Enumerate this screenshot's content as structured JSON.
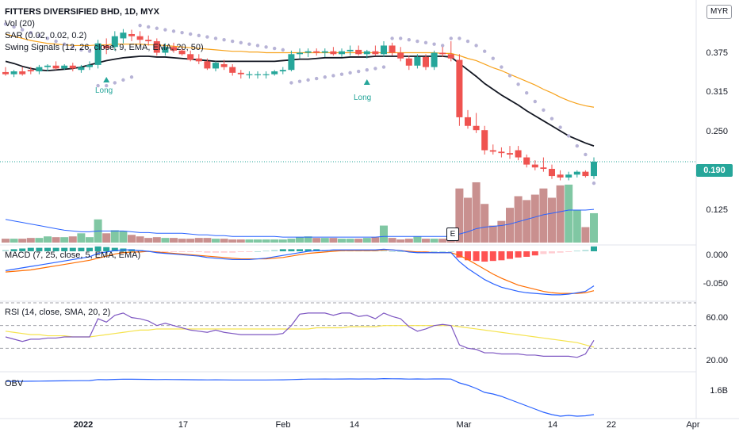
{
  "header": {
    "title": "FITTERS DIVERSIFIED BHD, 1D, MYX",
    "currency_badge": "MYR",
    "vol_label": "Vol (20)",
    "sar_label": "SAR (0.02, 0.02, 0.2)",
    "swing_label": "Swing Signals (12, 26, close, 9, EMA, EMA, 20, 50)"
  },
  "panes": {
    "macd_label": "MACD (7, 25, close, 5, EMA, EMA)",
    "rsi_label": "RSI (14, close, SMA, 20, 2)",
    "obv_label": "OBV"
  },
  "price_axis": {
    "ticks": [
      "0.375",
      "0.315",
      "0.250",
      "0.190",
      "0.125"
    ],
    "current_price": "0.190"
  },
  "macd_axis": {
    "ticks": [
      "0.000",
      "-0.050"
    ]
  },
  "rsi_axis": {
    "ticks": [
      "60.00",
      "20.00"
    ]
  },
  "obv_axis": {
    "ticks": [
      "1.6B"
    ]
  },
  "x_axis": {
    "ticks": [
      "2022",
      "17",
      "Feb",
      "14",
      "Mar",
      "14",
      "22",
      "Apr"
    ]
  },
  "annotations": {
    "long_1": "Long",
    "long_2": "Long",
    "earnings": "E"
  },
  "colors": {
    "up": "#26a69a",
    "down": "#ef5350",
    "ema20": "#131722",
    "ema50": "#f7a21b",
    "sar": "#b7b3d6",
    "macd": "#2962ff",
    "signal": "#ff6d00",
    "rsi": "#7e57c2",
    "rsi_ma": "#f5e34d",
    "obv": "#2962ff"
  },
  "chart_data": {
    "type": "candlestick",
    "price": {
      "ylim": [
        0.075,
        0.41
      ],
      "candles": [
        [
          0.315,
          0.322,
          0.31,
          0.312
        ],
        [
          0.312,
          0.318,
          0.308,
          0.316
        ],
        [
          0.316,
          0.322,
          0.31,
          0.312
        ],
        [
          0.318,
          0.322,
          0.312,
          0.316
        ],
        [
          0.316,
          0.325,
          0.312,
          0.322
        ],
        [
          0.322,
          0.326,
          0.316,
          0.324
        ],
        [
          0.324,
          0.33,
          0.318,
          0.32
        ],
        [
          0.32,
          0.326,
          0.318,
          0.324
        ],
        [
          0.324,
          0.328,
          0.316,
          0.32
        ],
        [
          0.318,
          0.325,
          0.314,
          0.322
        ],
        [
          0.322,
          0.33,
          0.318,
          0.325
        ],
        [
          0.325,
          0.36,
          0.32,
          0.355
        ],
        [
          0.352,
          0.362,
          0.34,
          0.348
        ],
        [
          0.35,
          0.372,
          0.345,
          0.365
        ],
        [
          0.362,
          0.375,
          0.355,
          0.37
        ],
        [
          0.368,
          0.374,
          0.358,
          0.365
        ],
        [
          0.365,
          0.372,
          0.355,
          0.36
        ],
        [
          0.36,
          0.366,
          0.352,
          0.358
        ],
        [
          0.358,
          0.362,
          0.338,
          0.342
        ],
        [
          0.342,
          0.355,
          0.338,
          0.35
        ],
        [
          0.35,
          0.356,
          0.342,
          0.345
        ],
        [
          0.345,
          0.35,
          0.338,
          0.34
        ],
        [
          0.34,
          0.345,
          0.33,
          0.332
        ],
        [
          0.334,
          0.34,
          0.326,
          0.33
        ],
        [
          0.33,
          0.334,
          0.318,
          0.32
        ],
        [
          0.32,
          0.33,
          0.316,
          0.328
        ],
        [
          0.326,
          0.332,
          0.318,
          0.322
        ],
        [
          0.322,
          0.326,
          0.31,
          0.314
        ],
        [
          0.314,
          0.318,
          0.306,
          0.312
        ],
        [
          0.312,
          0.316,
          0.306,
          0.312
        ],
        [
          0.312,
          0.316,
          0.306,
          0.312
        ],
        [
          0.312,
          0.316,
          0.306,
          0.312
        ],
        [
          0.312,
          0.318,
          0.31,
          0.316
        ],
        [
          0.316,
          0.322,
          0.312,
          0.318
        ],
        [
          0.318,
          0.345,
          0.316,
          0.34
        ],
        [
          0.34,
          0.348,
          0.334,
          0.342
        ],
        [
          0.342,
          0.348,
          0.336,
          0.344
        ],
        [
          0.344,
          0.348,
          0.338,
          0.342
        ],
        [
          0.342,
          0.348,
          0.336,
          0.344
        ],
        [
          0.344,
          0.35,
          0.338,
          0.34
        ],
        [
          0.34,
          0.348,
          0.336,
          0.344
        ],
        [
          0.344,
          0.352,
          0.338,
          0.346
        ],
        [
          0.346,
          0.352,
          0.338,
          0.34
        ],
        [
          0.34,
          0.346,
          0.334,
          0.344
        ],
        [
          0.344,
          0.352,
          0.338,
          0.34
        ],
        [
          0.34,
          0.358,
          0.336,
          0.352
        ],
        [
          0.352,
          0.356,
          0.338,
          0.342
        ],
        [
          0.342,
          0.35,
          0.33,
          0.334
        ],
        [
          0.334,
          0.338,
          0.318,
          0.324
        ],
        [
          0.324,
          0.34,
          0.32,
          0.336
        ],
        [
          0.336,
          0.34,
          0.318,
          0.322
        ],
        [
          0.322,
          0.345,
          0.318,
          0.342
        ],
        [
          0.342,
          0.35,
          0.336,
          0.34
        ],
        [
          0.34,
          0.358,
          0.33,
          0.334
        ],
        [
          0.332,
          0.34,
          0.24,
          0.252
        ],
        [
          0.252,
          0.262,
          0.236,
          0.24
        ],
        [
          0.24,
          0.258,
          0.23,
          0.234
        ],
        [
          0.234,
          0.24,
          0.2,
          0.206
        ],
        [
          0.206,
          0.214,
          0.2,
          0.204
        ],
        [
          0.204,
          0.21,
          0.196,
          0.202
        ],
        [
          0.202,
          0.212,
          0.194,
          0.2
        ],
        [
          0.206,
          0.212,
          0.192,
          0.196
        ],
        [
          0.196,
          0.2,
          0.182,
          0.186
        ],
        [
          0.186,
          0.192,
          0.178,
          0.182
        ],
        [
          0.182,
          0.196,
          0.176,
          0.18
        ],
        [
          0.18,
          0.186,
          0.166,
          0.17
        ],
        [
          0.172,
          0.178,
          0.164,
          0.168
        ],
        [
          0.168,
          0.176,
          0.164,
          0.172
        ],
        [
          0.172,
          0.178,
          0.168,
          0.176
        ],
        [
          0.176,
          0.178,
          0.168,
          0.17
        ],
        [
          0.17,
          0.196,
          0.166,
          0.19
        ]
      ],
      "ema20": [
        0.33,
        0.327,
        0.323,
        0.32,
        0.318,
        0.317,
        0.318,
        0.319,
        0.32,
        0.322,
        0.325,
        0.328,
        0.331,
        0.333,
        0.335,
        0.336,
        0.337,
        0.337,
        0.336,
        0.336,
        0.335,
        0.334,
        0.333,
        0.332,
        0.331,
        0.33,
        0.33,
        0.33,
        0.33,
        0.33,
        0.33,
        0.33,
        0.33,
        0.331,
        0.332,
        0.333,
        0.333,
        0.334,
        0.335,
        0.335,
        0.335,
        0.336,
        0.336,
        0.336,
        0.337,
        0.337,
        0.337,
        0.337,
        0.337,
        0.337,
        0.337,
        0.337,
        0.337,
        0.336,
        0.327,
        0.318,
        0.309,
        0.299,
        0.291,
        0.283,
        0.276,
        0.269,
        0.261,
        0.254,
        0.247,
        0.24,
        0.233,
        0.226,
        0.221,
        0.216,
        0.212
      ],
      "ema50": [
        0.368,
        0.365,
        0.362,
        0.359,
        0.357,
        0.355,
        0.354,
        0.353,
        0.352,
        0.352,
        0.352,
        0.353,
        0.353,
        0.354,
        0.354,
        0.354,
        0.354,
        0.353,
        0.353,
        0.352,
        0.351,
        0.35,
        0.349,
        0.348,
        0.347,
        0.346,
        0.345,
        0.344,
        0.344,
        0.343,
        0.343,
        0.342,
        0.342,
        0.342,
        0.342,
        0.342,
        0.342,
        0.342,
        0.342,
        0.342,
        0.342,
        0.342,
        0.342,
        0.342,
        0.342,
        0.342,
        0.342,
        0.342,
        0.342,
        0.342,
        0.342,
        0.342,
        0.341,
        0.341,
        0.338,
        0.334,
        0.331,
        0.326,
        0.321,
        0.317,
        0.312,
        0.307,
        0.302,
        0.297,
        0.291,
        0.286,
        0.28,
        0.275,
        0.271,
        0.268,
        0.266
      ],
      "sar": [
        0.382,
        0.378,
        0.374,
        0.37,
        0.366,
        0.362,
        0.358,
        0.354,
        0.35,
        0.346,
        0.344,
        0.296,
        0.296,
        0.3,
        0.304,
        0.308,
        0.38,
        0.378,
        0.376,
        0.374,
        0.372,
        0.37,
        0.368,
        0.366,
        0.364,
        0.362,
        0.36,
        0.358,
        0.356,
        0.354,
        0.352,
        0.35,
        0.348,
        0.346,
        0.3,
        0.302,
        0.304,
        0.306,
        0.308,
        0.31,
        0.312,
        0.314,
        0.316,
        0.318,
        0.32,
        0.322,
        0.362,
        0.362,
        0.36,
        0.358,
        0.356,
        0.354,
        0.352,
        0.362,
        0.362,
        0.358,
        0.352,
        0.344,
        0.334,
        0.322,
        0.31,
        0.298,
        0.286,
        0.274,
        0.262,
        0.25,
        0.238,
        0.226,
        0.212,
        0.2,
        0.16
      ]
    },
    "volume": {
      "ylim": [
        0,
        80
      ],
      "values": [
        5,
        5,
        5,
        6,
        6,
        8,
        7,
        7,
        8,
        12,
        7,
        30,
        12,
        16,
        15,
        10,
        8,
        6,
        7,
        6,
        6,
        5,
        5,
        6,
        6,
        5,
        5,
        4,
        4,
        4,
        4,
        4,
        4,
        4,
        5,
        7,
        8,
        6,
        6,
        6,
        5,
        5,
        5,
        6,
        7,
        22,
        6,
        4,
        5,
        8,
        5,
        5,
        5,
        7,
        70,
        58,
        78,
        50,
        22,
        28,
        45,
        60,
        55,
        62,
        70,
        58,
        74,
        75,
        42,
        20,
        38
      ],
      "ma": [
        30,
        28,
        26,
        24,
        22,
        20,
        18,
        16,
        15,
        14,
        14,
        15,
        15,
        15,
        15,
        14,
        13,
        13,
        12,
        12,
        12,
        12,
        11,
        10,
        10,
        9,
        9,
        8,
        8,
        8,
        8,
        8,
        8,
        7,
        7,
        7,
        7,
        7,
        7,
        7,
        7,
        7,
        7,
        7,
        7,
        8,
        8,
        8,
        8,
        8,
        8,
        8,
        8,
        8,
        11,
        14,
        18,
        20,
        21,
        22,
        24,
        27,
        30,
        33,
        36,
        38,
        40,
        42,
        42,
        42,
        43
      ]
    },
    "macd": {
      "ylim": [
        -0.07,
        0.008
      ],
      "macd": [
        -0.028,
        -0.026,
        -0.024,
        -0.022,
        -0.02,
        -0.018,
        -0.016,
        -0.014,
        -0.012,
        -0.01,
        -0.008,
        -0.003,
        -0.001,
        0.001,
        0.002,
        0.002,
        0.001,
        0.0,
        -0.002,
        -0.003,
        -0.004,
        -0.005,
        -0.006,
        -0.007,
        -0.009,
        -0.01,
        -0.011,
        -0.012,
        -0.012,
        -0.012,
        -0.011,
        -0.01,
        -0.008,
        -0.006,
        -0.004,
        -0.002,
        0.0,
        0.001,
        0.001,
        0.002,
        0.002,
        0.002,
        0.002,
        0.002,
        0.002,
        0.003,
        0.002,
        0.001,
        -0.001,
        -0.002,
        -0.002,
        -0.002,
        -0.002,
        -0.002,
        -0.015,
        -0.025,
        -0.033,
        -0.041,
        -0.047,
        -0.052,
        -0.055,
        -0.058,
        -0.06,
        -0.061,
        -0.062,
        -0.063,
        -0.063,
        -0.062,
        -0.06,
        -0.058,
        -0.05
      ],
      "signal": [
        -0.03,
        -0.029,
        -0.028,
        -0.027,
        -0.025,
        -0.023,
        -0.021,
        -0.019,
        -0.017,
        -0.015,
        -0.013,
        -0.01,
        -0.007,
        -0.004,
        -0.002,
        -0.001,
        -0.001,
        0.0,
        -0.001,
        -0.002,
        -0.003,
        -0.004,
        -0.005,
        -0.006,
        -0.007,
        -0.008,
        -0.009,
        -0.01,
        -0.011,
        -0.011,
        -0.011,
        -0.011,
        -0.01,
        -0.009,
        -0.007,
        -0.005,
        -0.003,
        -0.002,
        -0.001,
        0.0,
        0.001,
        0.001,
        0.001,
        0.001,
        0.001,
        0.002,
        0.002,
        0.001,
        0.0,
        -0.001,
        -0.001,
        -0.002,
        -0.002,
        -0.002,
        -0.006,
        -0.012,
        -0.019,
        -0.026,
        -0.033,
        -0.039,
        -0.044,
        -0.049,
        -0.052,
        -0.055,
        -0.058,
        -0.06,
        -0.061,
        -0.061,
        -0.061,
        -0.06,
        -0.057
      ]
    },
    "rsi": {
      "ylim": [
        10,
        70
      ],
      "rsi": [
        40,
        38,
        36,
        38,
        38,
        39,
        39,
        40,
        40,
        40,
        40,
        56,
        53,
        59,
        61,
        57,
        56,
        54,
        50,
        52,
        50,
        48,
        46,
        45,
        44,
        46,
        44,
        43,
        42,
        42,
        42,
        42,
        42,
        43,
        50,
        60,
        61,
        61,
        61,
        59,
        61,
        61,
        58,
        59,
        56,
        61,
        58,
        56,
        49,
        45,
        47,
        50,
        51,
        50,
        33,
        30,
        29,
        26,
        26,
        25,
        25,
        25,
        24,
        24,
        23,
        23,
        23,
        23,
        22,
        25,
        37
      ],
      "ma": [
        45,
        44,
        43,
        42,
        42,
        41,
        41,
        41,
        40,
        40,
        40,
        41,
        42,
        43,
        44,
        45,
        46,
        46,
        47,
        47,
        47,
        47,
        47,
        47,
        47,
        47,
        47,
        47,
        47,
        47,
        47,
        47,
        47,
        47,
        47,
        47,
        47,
        48,
        48,
        48,
        48,
        49,
        49,
        49,
        49,
        50,
        50,
        50,
        50,
        50,
        50,
        50,
        50,
        50,
        49,
        48,
        47,
        46,
        45,
        44,
        43,
        42,
        41,
        40,
        39,
        38,
        37,
        36,
        35,
        33,
        31
      ],
      "bands": [
        70,
        50,
        30
      ]
    },
    "obv": {
      "ylim": [
        1.32,
        1.9
      ],
      "values": [
        1.79,
        1.79,
        1.79,
        1.791,
        1.792,
        1.794,
        1.795,
        1.796,
        1.797,
        1.798,
        1.799,
        1.812,
        1.81,
        1.814,
        1.817,
        1.816,
        1.815,
        1.814,
        1.812,
        1.813,
        1.812,
        1.811,
        1.81,
        1.809,
        1.808,
        1.809,
        1.808,
        1.807,
        1.807,
        1.807,
        1.807,
        1.807,
        1.808,
        1.809,
        1.812,
        1.815,
        1.818,
        1.818,
        1.819,
        1.818,
        1.819,
        1.82,
        1.819,
        1.82,
        1.819,
        1.824,
        1.822,
        1.821,
        1.818,
        1.82,
        1.818,
        1.82,
        1.82,
        1.818,
        1.77,
        1.74,
        1.7,
        1.65,
        1.63,
        1.6,
        1.56,
        1.52,
        1.48,
        1.44,
        1.4,
        1.37,
        1.35,
        1.36,
        1.35,
        1.355,
        1.37
      ]
    }
  }
}
